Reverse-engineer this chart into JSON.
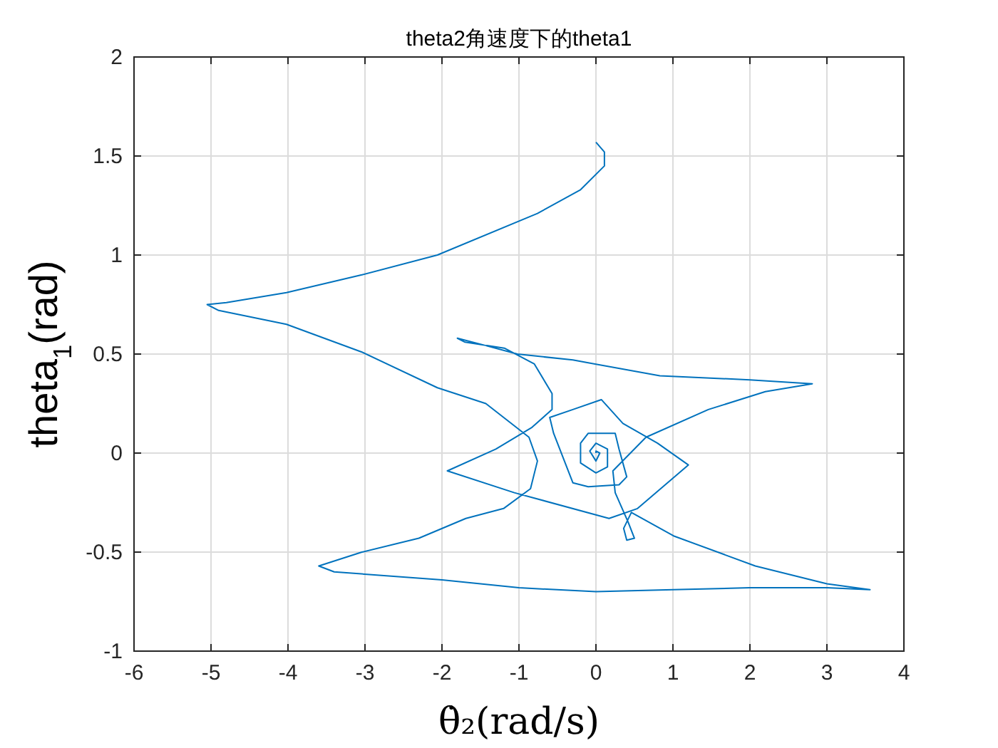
{
  "chart_data": {
    "type": "line",
    "title": "theta2角速度下的theta1",
    "xlabel": "θ̇₂(rad/s)",
    "ylabel": "theta$_{1}$(rad)",
    "xlim": [
      -6,
      4
    ],
    "ylim": [
      -1,
      2
    ],
    "xticks": [
      -6,
      -5,
      -4,
      -3,
      -2,
      -1,
      0,
      1,
      2,
      3,
      4
    ],
    "yticks": [
      -1,
      -0.5,
      0,
      0.5,
      1,
      1.5,
      2
    ],
    "grid": true,
    "series": [
      {
        "color": "#0072bd",
        "x": [
          0,
          0.11,
          0.11,
          -0.2,
          -0.76,
          -2.06,
          -3.04,
          -4.02,
          -4.8,
          -5.05,
          -4.9,
          -4.02,
          -3.04,
          -2.06,
          -1.43,
          -0.87,
          -0.76,
          -0.85,
          -1.2,
          -1.69,
          -2.3,
          -3.04,
          -3.6,
          -3.4,
          -2,
          -1,
          0,
          1,
          2,
          3,
          3.56,
          3,
          2.07,
          1.02,
          0.46,
          0.36,
          0.4,
          0.5,
          0.42,
          0.25,
          0.22,
          0.65,
          1.46,
          2.2,
          2.81,
          2,
          0.83,
          -0.3,
          -1.02,
          -1.5,
          -1.8,
          -1.7,
          -1.19,
          -0.8,
          -0.57,
          -0.57,
          -0.83,
          -1.3,
          -1.93,
          -1.06,
          0.17,
          0.54,
          1.2,
          0.8,
          0.35,
          0.07,
          -0.3,
          -0.6,
          -0.55,
          -0.3,
          -0.1,
          0.3,
          0.4,
          0.3,
          0.25,
          -0.1,
          -0.2,
          -0.2,
          0,
          0.15,
          0.15,
          0,
          -0.08,
          0,
          0.05,
          0,
          0
        ],
        "values": [
          1.57,
          1.52,
          1.45,
          1.33,
          1.21,
          1.0,
          0.9,
          0.81,
          0.76,
          0.75,
          0.72,
          0.65,
          0.51,
          0.33,
          0.25,
          0.08,
          -0.04,
          -0.18,
          -0.28,
          -0.33,
          -0.43,
          -0.5,
          -0.57,
          -0.6,
          -0.64,
          -0.68,
          -0.7,
          -0.69,
          -0.68,
          -0.68,
          -0.69,
          -0.66,
          -0.57,
          -0.42,
          -0.3,
          -0.38,
          -0.44,
          -0.43,
          -0.35,
          -0.2,
          -0.09,
          0.08,
          0.22,
          0.31,
          0.35,
          0.37,
          0.39,
          0.47,
          0.5,
          0.55,
          0.58,
          0.56,
          0.53,
          0.45,
          0.3,
          0.22,
          0.13,
          0.02,
          -0.09,
          -0.2,
          -0.33,
          -0.28,
          -0.06,
          0.05,
          0.15,
          0.27,
          0.22,
          0.18,
          0.1,
          -0.15,
          -0.17,
          -0.16,
          -0.12,
          0.02,
          0.1,
          0.1,
          0.05,
          -0.05,
          -0.1,
          -0.07,
          0.02,
          0.05,
          0.01,
          -0.04,
          0,
          0.01,
          0
        ]
      }
    ]
  }
}
